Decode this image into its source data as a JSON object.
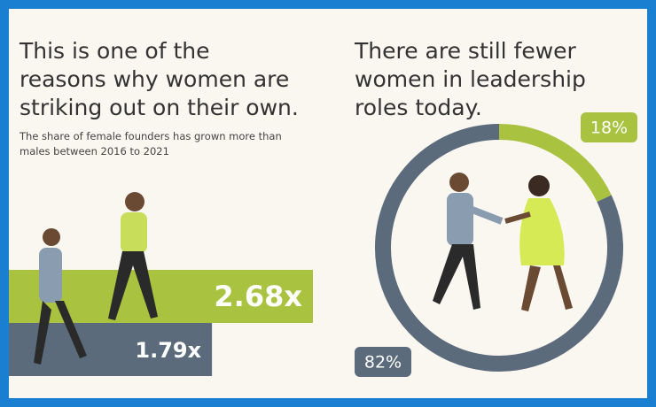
{
  "chart_data": [
    {
      "type": "bar",
      "title": "This is one of the reasons why women are striking out on their own.",
      "subtitle": "The share of female founders has grown more than males between 2016 to 2021",
      "categories": [
        null,
        null
      ],
      "values": [
        2.68,
        1.79
      ],
      "value_labels": [
        "2.68x",
        "1.79x"
      ],
      "colors": [
        "#a9c23f",
        "#5b6b7c"
      ]
    },
    {
      "type": "pie",
      "title": "There are still fewer women in leadership roles today.",
      "values": [
        18,
        82
      ],
      "value_labels": [
        "18%",
        "82%"
      ],
      "colors": [
        "#a9c23f",
        "#5b6b7c"
      ]
    }
  ]
}
